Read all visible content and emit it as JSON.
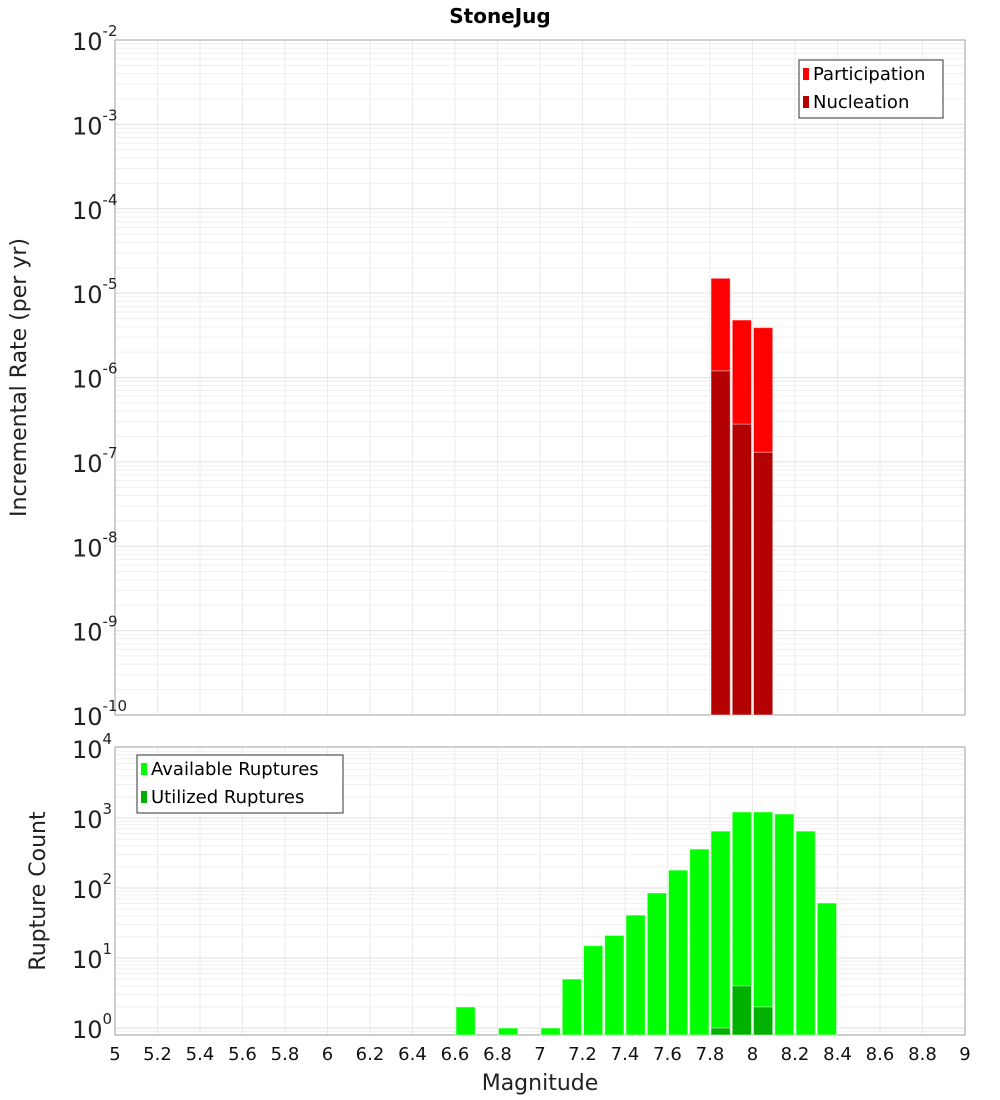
{
  "chart_data": [
    {
      "type": "bar",
      "title": "StoneJug",
      "xlabel": "",
      "ylabel": "Incremental Rate (per yr)",
      "yscale": "log",
      "ylim_exp": [
        -10,
        -2
      ],
      "xlim": [
        5,
        9
      ],
      "bin_width": 0.1,
      "legend_position": "top-right",
      "series": [
        {
          "name": "Participation",
          "color": "#ff0000",
          "x": [
            7.85,
            7.95,
            8.05
          ],
          "values": [
            1.5e-05,
            4.8e-06,
            3.9e-06
          ]
        },
        {
          "name": "Nucleation",
          "color": "#b30000",
          "x": [
            7.85,
            7.95,
            8.05
          ],
          "values": [
            1.2e-06,
            2.8e-07,
            1.3e-07
          ]
        }
      ]
    },
    {
      "type": "bar",
      "xlabel": "Magnitude",
      "ylabel": "Rupture Count",
      "yscale": "log",
      "ylim_exp": [
        0,
        4
      ],
      "xlim": [
        5,
        9
      ],
      "bin_width": 0.1,
      "legend_position": "top-left",
      "x_ticks": [
        "5",
        "5.2",
        "5.4",
        "5.6",
        "5.8",
        "6",
        "6.2",
        "6.4",
        "6.6",
        "6.8",
        "7",
        "7.2",
        "7.4",
        "7.6",
        "7.8",
        "8",
        "8.2",
        "8.4",
        "8.6",
        "8.8",
        "9"
      ],
      "series": [
        {
          "name": "Available Ruptures",
          "color": "#00ff00",
          "x": [
            6.65,
            6.85,
            7.05,
            7.15,
            7.25,
            7.35,
            7.45,
            7.55,
            7.65,
            7.75,
            7.85,
            7.95,
            8.05,
            8.15,
            8.25,
            8.35
          ],
          "values": [
            2,
            1,
            1,
            5,
            15,
            21,
            41,
            85,
            180,
            360,
            650,
            1220,
            1220,
            1140,
            650,
            61
          ]
        },
        {
          "name": "Utilized Ruptures",
          "color": "#00b000",
          "x": [
            7.85,
            7.95,
            8.05
          ],
          "values": [
            1,
            4,
            2
          ]
        }
      ]
    }
  ]
}
